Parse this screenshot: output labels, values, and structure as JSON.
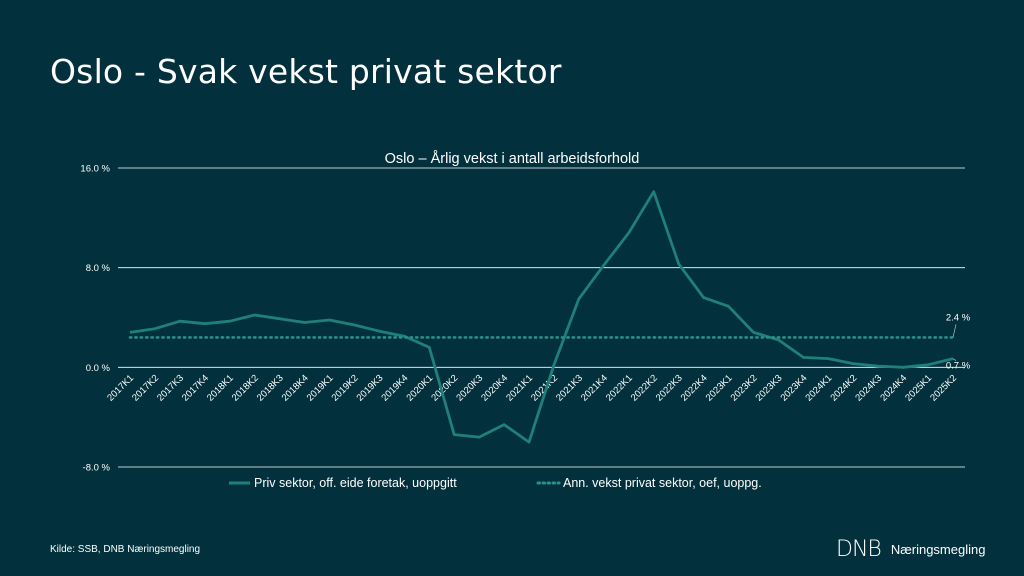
{
  "slide": {
    "title": "Oslo - Svak vekst privat sektor",
    "source": "Kilde: SSB, DNB Næringsmegling",
    "brand_mark": "DNB",
    "brand_name": "Næringsmegling"
  },
  "colors": {
    "background": "#02313d",
    "series_line": "#1f7f7b",
    "average_line": "#2a8f86",
    "gridline": "#ffffff",
    "text": "#ffffff"
  },
  "chart_data": {
    "type": "line",
    "title": "Oslo – Årlig vekst i antall arbeidsforhold",
    "x": [
      "2017K1",
      "2017K2",
      "2017K3",
      "2017K4",
      "2018K1",
      "2018K2",
      "2018K3",
      "2018K4",
      "2019K1",
      "2019K2",
      "2019K3",
      "2019K4",
      "2020K1",
      "2020K2",
      "2020K3",
      "2020K4",
      "2021K1",
      "2021K2",
      "2021K3",
      "2021K4",
      "2022K1",
      "2022K2",
      "2022K3",
      "2022K4",
      "2023K1",
      "2023K2",
      "2023K3",
      "2023K4",
      "2024K1",
      "2024K2",
      "2024K3",
      "2024K4",
      "2025K1",
      "2025K2"
    ],
    "series": [
      {
        "name": "Priv sektor, off. eide foretak, uoppgitt",
        "style": "solid",
        "values": [
          2.8,
          3.1,
          3.7,
          3.5,
          3.7,
          4.2,
          3.9,
          3.6,
          3.8,
          3.4,
          2.9,
          2.5,
          1.6,
          -5.4,
          -5.6,
          -4.6,
          -6.0,
          0.2,
          5.5,
          8.2,
          10.8,
          14.1,
          8.3,
          5.6,
          4.9,
          2.8,
          2.2,
          0.8,
          0.7,
          0.3,
          0.1,
          0.0,
          0.2,
          0.7
        ]
      },
      {
        "name": "Ann. vekst privat sektor, oef, uoppg.",
        "style": "dotted",
        "values": [
          2.4,
          2.4,
          2.4,
          2.4,
          2.4,
          2.4,
          2.4,
          2.4,
          2.4,
          2.4,
          2.4,
          2.4,
          2.4,
          2.4,
          2.4,
          2.4,
          2.4,
          2.4,
          2.4,
          2.4,
          2.4,
          2.4,
          2.4,
          2.4,
          2.4,
          2.4,
          2.4,
          2.4,
          2.4,
          2.4,
          2.4,
          2.4,
          2.4,
          2.4
        ]
      }
    ],
    "ylim": [
      -8,
      16
    ],
    "yticks": [
      -8,
      0,
      8,
      16
    ],
    "ytick_labels": [
      "-8.0 %",
      "0.0 %",
      "8.0 %",
      "16.0 %"
    ],
    "annotations": [
      {
        "text": "2.4 %",
        "series": 1,
        "index": 33
      },
      {
        "text": "0.7 %",
        "series": 0,
        "index": 33
      }
    ],
    "grid": true,
    "legend": "bottom"
  }
}
